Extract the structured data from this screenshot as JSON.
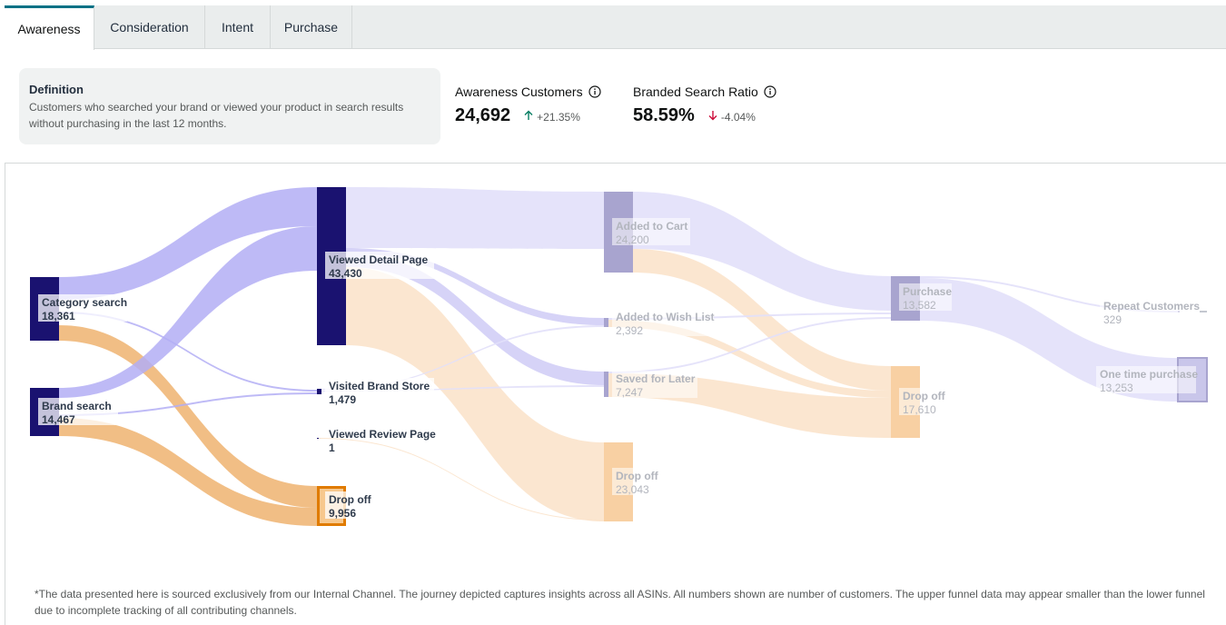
{
  "tabs": [
    {
      "label": "Awareness",
      "active": true
    },
    {
      "label": "Consideration",
      "active": false
    },
    {
      "label": "Intent",
      "active": false
    },
    {
      "label": "Purchase",
      "active": false
    }
  ],
  "definition": {
    "title": "Definition",
    "text": "Customers who searched your brand or viewed your product in search results without purchasing in the last 12 months."
  },
  "metrics": [
    {
      "label": "Awareness Customers",
      "value": "24,692",
      "change": "+21.35%",
      "direction": "up",
      "change_color": "#067d62"
    },
    {
      "label": "Branded Search Ratio",
      "value": "58.59%",
      "change": "-4.04%",
      "direction": "down",
      "change_color": "#cc0c39"
    }
  ],
  "chart_data": {
    "type": "sankey",
    "nodes": [
      {
        "id": "cat",
        "label": "Category search",
        "value": "18,361",
        "kind": "source"
      },
      {
        "id": "brand",
        "label": "Brand search",
        "value": "14,467",
        "kind": "source"
      },
      {
        "id": "vdp",
        "label": "Viewed Detail Page",
        "value": "43,430",
        "kind": "main"
      },
      {
        "id": "vbs",
        "label": "Visited Brand Store",
        "value": "1,479",
        "kind": "main"
      },
      {
        "id": "vrp",
        "label": "Viewed Review Page",
        "value": "1",
        "kind": "main"
      },
      {
        "id": "drop1",
        "label": "Drop off",
        "value": "9,956",
        "kind": "drop"
      },
      {
        "id": "atc",
        "label": "Added to Cart",
        "value": "24,200",
        "kind": "faded"
      },
      {
        "id": "awl",
        "label": "Added to Wish List",
        "value": "2,392",
        "kind": "faded"
      },
      {
        "id": "sfl",
        "label": "Saved for Later",
        "value": "7,247",
        "kind": "faded"
      },
      {
        "id": "drop2",
        "label": "Drop off",
        "value": "23,043",
        "kind": "faded-drop"
      },
      {
        "id": "pur",
        "label": "Purchase",
        "value": "13,582",
        "kind": "faded"
      },
      {
        "id": "drop3",
        "label": "Drop off",
        "value": "17,610",
        "kind": "faded-drop"
      },
      {
        "id": "rep",
        "label": "Repeat Customers",
        "value": "329",
        "kind": "faded"
      },
      {
        "id": "once",
        "label": "One time purchase",
        "value": "13,253",
        "kind": "faded"
      }
    ],
    "links": [
      {
        "source": "cat",
        "target": "vdp"
      },
      {
        "source": "cat",
        "target": "vbs"
      },
      {
        "source": "cat",
        "target": "drop1"
      },
      {
        "source": "brand",
        "target": "vdp"
      },
      {
        "source": "brand",
        "target": "vbs"
      },
      {
        "source": "brand",
        "target": "drop1"
      },
      {
        "source": "vdp",
        "target": "atc"
      },
      {
        "source": "vdp",
        "target": "awl"
      },
      {
        "source": "vdp",
        "target": "sfl"
      },
      {
        "source": "vdp",
        "target": "drop2"
      },
      {
        "source": "vbs",
        "target": "awl"
      },
      {
        "source": "vbs",
        "target": "sfl"
      },
      {
        "source": "vrp",
        "target": "drop2"
      },
      {
        "source": "atc",
        "target": "pur"
      },
      {
        "source": "atc",
        "target": "drop3"
      },
      {
        "source": "awl",
        "target": "pur"
      },
      {
        "source": "awl",
        "target": "drop3"
      },
      {
        "source": "sfl",
        "target": "pur"
      },
      {
        "source": "sfl",
        "target": "drop3"
      },
      {
        "source": "pur",
        "target": "rep"
      },
      {
        "source": "pur",
        "target": "once"
      }
    ],
    "colors": {
      "node_main": "#1a1270",
      "link_blue": "#b3aef5",
      "link_orange": "#f0b778",
      "drop_node": "#f7c88e",
      "drop_border": "#e07b00",
      "faded_link_blue": "#e2e0fa",
      "faded_link_orange": "#fbe3cb",
      "faded_node_blue": "#a8a4cf",
      "faded_node_orange": "#f8d0a3"
    }
  },
  "footnote": "*The data presented here is sourced exclusively from our Internal Channel. The journey depicted captures insights across all ASINs. All numbers shown are number of customers. The upper funnel data may appear smaller than the lower funnel due to incomplete tracking of all contributing channels."
}
